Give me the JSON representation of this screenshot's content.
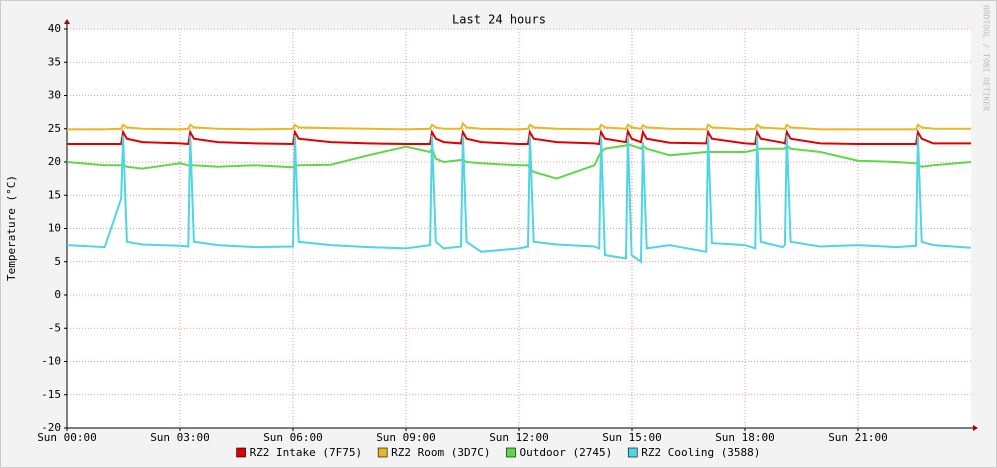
{
  "chart_data": {
    "type": "line",
    "title": "Last 24 hours",
    "y_label": "Temperature (°C)",
    "side_label": "RRDTOOL / TOBI OETIKER",
    "x": [
      0,
      1,
      1.44,
      1.49,
      1.59,
      2,
      3,
      3.22,
      3.27,
      3.37,
      4,
      5,
      6,
      6.05,
      6.15,
      7,
      8,
      9,
      9.64,
      9.69,
      9.79,
      10,
      10.46,
      10.51,
      10.61,
      11,
      12,
      12.24,
      12.29,
      12.39,
      13,
      14,
      14.13,
      14.18,
      14.28,
      14.84,
      14.89,
      14.99,
      15.24,
      15.29,
      15.39,
      16,
      16.97,
      17.02,
      17.12,
      18,
      18.27,
      18.32,
      18.42,
      19,
      19.06,
      19.11,
      19.21,
      20,
      21,
      22,
      22.54,
      22.59,
      22.69,
      23,
      24
    ],
    "series": [
      {
        "name": "RZ2 Intake (7F75)",
        "color": "#e00000",
        "values": [
          22.7,
          22.7,
          22.7,
          24.5,
          23.5,
          23,
          22.8,
          22.7,
          24.5,
          23.5,
          23,
          22.8,
          22.7,
          24.5,
          23.5,
          23,
          22.8,
          22.7,
          22.7,
          24.5,
          23.5,
          23,
          22.8,
          24.5,
          23.5,
          23,
          22.7,
          22.7,
          24.5,
          23.5,
          23,
          22.8,
          22.7,
          24.5,
          23.5,
          23,
          24.6,
          23.5,
          23,
          24.5,
          23.5,
          22.9,
          22.8,
          24.5,
          23.5,
          22.8,
          22.7,
          24.5,
          23.5,
          22.9,
          22.8,
          24.5,
          23.5,
          22.8,
          22.7,
          22.7,
          22.7,
          24.5,
          23.5,
          22.8,
          22.8
        ]
      },
      {
        "name": "RZ2 Room (3D7C)",
        "color": "#e8b820",
        "values": [
          24.9,
          24.9,
          25,
          25.6,
          25.2,
          25,
          24.9,
          25,
          25.6,
          25.2,
          25,
          24.9,
          25,
          25.6,
          25.2,
          25.1,
          25,
          24.9,
          25,
          25.6,
          25.2,
          25,
          25,
          25.8,
          25.2,
          25,
          24.9,
          25,
          25.6,
          25.2,
          25,
          24.9,
          25,
          25.6,
          25.2,
          25,
          25.6,
          25.2,
          25,
          25.5,
          25.2,
          25,
          24.9,
          25.6,
          25.2,
          24.9,
          25,
          25.6,
          25.2,
          25,
          25,
          25.6,
          25.2,
          24.9,
          24.9,
          24.9,
          24.9,
          25.6,
          25.2,
          25,
          25
        ]
      },
      {
        "name": "Outdoor (2745)",
        "color": "#5ed84a",
        "values": [
          20,
          19.5,
          19.5,
          19.5,
          19.3,
          19,
          19.8,
          19.5,
          19.5,
          19.5,
          19.3,
          19.5,
          19.2,
          19.5,
          19.5,
          19.6,
          21,
          22.3,
          21.5,
          22,
          20.5,
          20,
          20.3,
          20.3,
          20,
          19.8,
          19.5,
          19.5,
          19,
          18.5,
          17.5,
          19.5,
          21,
          21.5,
          22,
          22.5,
          22.7,
          22.5,
          22,
          22.5,
          22,
          21,
          21.5,
          21.5,
          21.5,
          21.5,
          21.8,
          22,
          22,
          22,
          22,
          22.5,
          22,
          21.5,
          20.2,
          20,
          19.8,
          19.5,
          19.3,
          19.5,
          20
        ]
      },
      {
        "name": "RZ2 Cooling (3588)",
        "color": "#4fd5e3",
        "values": [
          7.5,
          7.2,
          14.5,
          24,
          8,
          7.6,
          7.4,
          7.3,
          24,
          8,
          7.5,
          7.2,
          7.3,
          24,
          8,
          7.5,
          7.2,
          7,
          7.5,
          24,
          8,
          7,
          7.3,
          24,
          8,
          6.5,
          7,
          7.3,
          24,
          8,
          7.6,
          7.3,
          7,
          24,
          6,
          5.5,
          24,
          6,
          5,
          23,
          7,
          7.5,
          6.5,
          24,
          7.8,
          7.5,
          7,
          24,
          8,
          7.2,
          7.5,
          24,
          8,
          7.3,
          7.5,
          7.2,
          7.4,
          24,
          8,
          7.5,
          7.1
        ]
      }
    ],
    "xlim": [
      0,
      24
    ],
    "xticks": [
      {
        "value": 0,
        "label": "Sun 00:00"
      },
      {
        "value": 3,
        "label": "Sun 03:00"
      },
      {
        "value": 6,
        "label": "Sun 06:00"
      },
      {
        "value": 9,
        "label": "Sun 09:00"
      },
      {
        "value": 12,
        "label": "Sun 12:00"
      },
      {
        "value": 15,
        "label": "Sun 15:00"
      },
      {
        "value": 18,
        "label": "Sun 18:00"
      },
      {
        "value": 21,
        "label": "Sun 21:00"
      }
    ],
    "ylim": [
      -20,
      40
    ],
    "yticks": [
      -20,
      -15,
      -10,
      -5,
      0,
      5,
      10,
      15,
      20,
      25,
      30,
      35,
      40
    ],
    "grid": true
  }
}
